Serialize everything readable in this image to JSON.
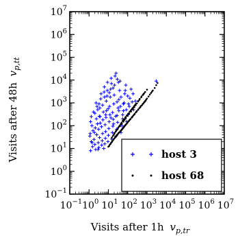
{
  "chart_data": {
    "type": "scatter",
    "title": "",
    "xlabel": "Visits after 1h",
    "xlabel_symbol": "v",
    "xlabel_sub": "p,tr",
    "ylabel": "Visits after 48h",
    "ylabel_symbol": "v",
    "ylabel_sub": "p,tt",
    "xscale": "log",
    "yscale": "log",
    "xlim": [
      0.1,
      10000000
    ],
    "ylim": [
      0.1,
      10000000
    ],
    "x_ticks": [
      {
        "base": "10",
        "exp": "−1"
      },
      {
        "base": "10",
        "exp": "0"
      },
      {
        "base": "10",
        "exp": "1"
      },
      {
        "base": "10",
        "exp": "2"
      },
      {
        "base": "10",
        "exp": "3"
      },
      {
        "base": "10",
        "exp": "4"
      },
      {
        "base": "10",
        "exp": "5"
      },
      {
        "base": "10",
        "exp": "6"
      },
      {
        "base": "10",
        "exp": "7"
      }
    ],
    "y_ticks": [
      {
        "base": "10",
        "exp": "−1"
      },
      {
        "base": "10",
        "exp": "0"
      },
      {
        "base": "10",
        "exp": "1"
      },
      {
        "base": "10",
        "exp": "2"
      },
      {
        "base": "10",
        "exp": "3"
      },
      {
        "base": "10",
        "exp": "4"
      },
      {
        "base": "10",
        "exp": "5"
      },
      {
        "base": "10",
        "exp": "6"
      },
      {
        "base": "10",
        "exp": "7"
      }
    ],
    "grid": false,
    "legend_position": "bottom-right",
    "series": [
      {
        "name": "host 3",
        "marker": "+",
        "color": "#0000ff",
        "points": [
          [
            1.2,
            8
          ],
          [
            1.5,
            12
          ],
          [
            1.3,
            20
          ],
          [
            1.1,
            35
          ],
          [
            1.6,
            60
          ],
          [
            1.4,
            100
          ],
          [
            1.2,
            150
          ],
          [
            1.8,
            25
          ],
          [
            2,
            15
          ],
          [
            2.2,
            9
          ],
          [
            2.5,
            40
          ],
          [
            2.1,
            80
          ],
          [
            2.4,
            200
          ],
          [
            2,
            350
          ],
          [
            2.8,
            500
          ],
          [
            2.3,
            1000
          ],
          [
            3,
            18
          ],
          [
            3.2,
            11
          ],
          [
            3.5,
            30
          ],
          [
            3.1,
            70
          ],
          [
            3.8,
            130
          ],
          [
            3.4,
            260
          ],
          [
            3.6,
            600
          ],
          [
            4,
            1500
          ],
          [
            4.2,
            2500
          ],
          [
            4.5,
            14
          ],
          [
            4.8,
            22
          ],
          [
            5,
            45
          ],
          [
            4.4,
            90
          ],
          [
            5.2,
            180
          ],
          [
            5.5,
            400
          ],
          [
            5,
            800
          ],
          [
            6,
            3000
          ],
          [
            6.2,
            5000
          ],
          [
            6.5,
            16
          ],
          [
            7,
            28
          ],
          [
            7.2,
            55
          ],
          [
            6.8,
            110
          ],
          [
            7.5,
            230
          ],
          [
            8,
            450
          ],
          [
            7.8,
            1200
          ],
          [
            8.5,
            2000
          ],
          [
            9,
            8000
          ],
          [
            9.5,
            20
          ],
          [
            10,
            38
          ],
          [
            10.5,
            75
          ],
          [
            11,
            150
          ],
          [
            12,
            300
          ],
          [
            11.5,
            700
          ],
          [
            12.5,
            1800
          ],
          [
            13,
            4000
          ],
          [
            14,
            12000
          ],
          [
            15,
            26
          ],
          [
            16,
            50
          ],
          [
            17,
            95
          ],
          [
            18,
            190
          ],
          [
            16.5,
            380
          ],
          [
            19,
            900
          ],
          [
            20,
            2200
          ],
          [
            21,
            6000
          ],
          [
            22,
            15000
          ],
          [
            25,
            35
          ],
          [
            27,
            70
          ],
          [
            30,
            140
          ],
          [
            28,
            280
          ],
          [
            32,
            600
          ],
          [
            35,
            1400
          ],
          [
            38,
            3500
          ],
          [
            40,
            9000
          ],
          [
            45,
            50
          ],
          [
            50,
            100
          ],
          [
            55,
            200
          ],
          [
            60,
            450
          ],
          [
            65,
            1000
          ],
          [
            70,
            2500
          ],
          [
            80,
            6000
          ],
          [
            90,
            150
          ],
          [
            100,
            300
          ],
          [
            120,
            700
          ],
          [
            130,
            1600
          ],
          [
            150,
            4000
          ],
          [
            200,
            500
          ],
          [
            250,
            1200
          ],
          [
            1.3,
            250
          ],
          [
            1.7,
            400
          ],
          [
            2.6,
            700
          ],
          [
            3.3,
            900
          ],
          [
            1.9,
            50
          ],
          [
            2.7,
            120
          ],
          [
            3.7,
            250
          ],
          [
            6.3,
            1800
          ],
          [
            8.8,
            3500
          ],
          [
            11.2,
            2800
          ],
          [
            14.5,
            7000
          ],
          [
            17.5,
            4500
          ],
          [
            25,
            20000
          ],
          [
            29,
            11000
          ],
          [
            33,
            8000
          ],
          [
            45,
            1800
          ],
          [
            60,
            900
          ],
          [
            75,
            3500
          ],
          [
            100,
            2000
          ],
          [
            3000,
            9000
          ],
          [
            1.15,
            45
          ],
          [
            1.45,
            18
          ],
          [
            2.9,
            9
          ],
          [
            5.8,
            10
          ],
          [
            7.3,
            300
          ],
          [
            9.7,
            550
          ],
          [
            13.5,
            220
          ],
          [
            18.5,
            120
          ],
          [
            24,
            260
          ],
          [
            28,
            1100
          ],
          [
            35,
            450
          ],
          [
            42,
            700
          ],
          [
            55,
            300
          ],
          [
            85,
            500
          ],
          [
            110,
            900
          ],
          [
            170,
            1100
          ],
          [
            190,
            2500
          ]
        ]
      },
      {
        "name": "host 68",
        "marker": ".",
        "color": "#000000",
        "points": [
          [
            10,
            12
          ],
          [
            12,
            15
          ],
          [
            14,
            18
          ],
          [
            16,
            21
          ],
          [
            18,
            24
          ],
          [
            20,
            27
          ],
          [
            22,
            30
          ],
          [
            25,
            34
          ],
          [
            28,
            38
          ],
          [
            30,
            42
          ],
          [
            33,
            46
          ],
          [
            36,
            50
          ],
          [
            40,
            55
          ],
          [
            45,
            60
          ],
          [
            50,
            68
          ],
          [
            55,
            75
          ],
          [
            60,
            82
          ],
          [
            65,
            90
          ],
          [
            70,
            98
          ],
          [
            80,
            110
          ],
          [
            90,
            125
          ],
          [
            100,
            140
          ],
          [
            110,
            155
          ],
          [
            120,
            170
          ],
          [
            140,
            195
          ],
          [
            160,
            225
          ],
          [
            180,
            255
          ],
          [
            200,
            285
          ],
          [
            230,
            330
          ],
          [
            260,
            380
          ],
          [
            300,
            440
          ],
          [
            350,
            510
          ],
          [
            400,
            590
          ],
          [
            450,
            670
          ],
          [
            500,
            750
          ],
          [
            600,
            900
          ],
          [
            700,
            1050
          ],
          [
            800,
            1200
          ],
          [
            900,
            1400
          ],
          [
            1000,
            1550
          ],
          [
            1200,
            1900
          ],
          [
            1400,
            2300
          ],
          [
            1600,
            2700
          ],
          [
            1800,
            3100
          ],
          [
            2000,
            3500
          ],
          [
            2500,
            4500
          ],
          [
            3000,
            6000
          ],
          [
            3500,
            7500
          ],
          [
            20,
            45
          ],
          [
            30,
            70
          ],
          [
            40,
            95
          ],
          [
            50,
            120
          ],
          [
            60,
            150
          ],
          [
            70,
            180
          ],
          [
            80,
            210
          ],
          [
            100,
            270
          ],
          [
            120,
            330
          ],
          [
            150,
            420
          ],
          [
            180,
            520
          ],
          [
            220,
            650
          ],
          [
            260,
            800
          ],
          [
            300,
            950
          ],
          [
            350,
            1150
          ],
          [
            400,
            1350
          ],
          [
            500,
            1750
          ],
          [
            600,
            2200
          ],
          [
            700,
            2600
          ],
          [
            800,
            3000
          ],
          [
            25,
            60
          ],
          [
            35,
            90
          ],
          [
            45,
            120
          ],
          [
            60,
            170
          ],
          [
            80,
            240
          ],
          [
            110,
            340
          ],
          [
            140,
            450
          ],
          [
            170,
            560
          ],
          [
            210,
            700
          ],
          [
            250,
            850
          ],
          [
            15,
            30
          ],
          [
            17,
            35
          ],
          [
            19,
            40
          ],
          [
            21,
            48
          ],
          [
            24,
            55
          ],
          [
            27,
            65
          ],
          [
            32,
            80
          ],
          [
            38,
            100
          ],
          [
            43,
            115
          ],
          [
            48,
            135
          ],
          [
            55,
            160
          ],
          [
            65,
            195
          ],
          [
            75,
            230
          ],
          [
            90,
            280
          ],
          [
            105,
            330
          ],
          [
            125,
            400
          ],
          [
            155,
            500
          ],
          [
            190,
            620
          ],
          [
            230,
            770
          ],
          [
            280,
            950
          ],
          [
            340,
            1200
          ],
          [
            420,
            1500
          ],
          [
            520,
            1900
          ],
          [
            650,
            2400
          ],
          [
            800,
            3000
          ],
          [
            1000,
            3800
          ],
          [
            11,
            13
          ],
          [
            13,
            16
          ],
          [
            15,
            19
          ],
          [
            23,
            32
          ],
          [
            26,
            36
          ],
          [
            29,
            40
          ],
          [
            34,
            48
          ],
          [
            42,
            58
          ],
          [
            47,
            64
          ],
          [
            52,
            72
          ],
          [
            58,
            80
          ],
          [
            62,
            88
          ],
          [
            68,
            96
          ],
          [
            75,
            105
          ],
          [
            85,
            120
          ],
          [
            95,
            135
          ],
          [
            130,
            185
          ],
          [
            170,
            240
          ],
          [
            220,
            310
          ],
          [
            280,
            400
          ],
          [
            350,
            500
          ],
          [
            450,
            640
          ],
          [
            550,
            790
          ],
          [
            650,
            940
          ],
          [
            750,
            1100
          ],
          [
            850,
            1250
          ]
        ]
      }
    ]
  }
}
